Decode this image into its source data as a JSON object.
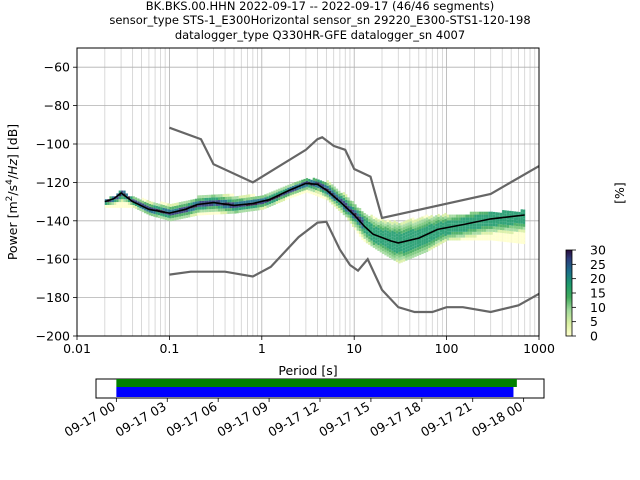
{
  "title_lines": [
    "BK.BKS.00.HHN   2022-09-17 -- 2022-09-17  (46/46 segments)",
    "sensor_type STS-1_E300Horizontal sensor_sn 29220_E300-STS1-120-198",
    "datalogger_type Q330HR-GFE datalogger_sn 4007"
  ],
  "colorbar": {
    "label": "[%]",
    "min": 0,
    "max": 30,
    "ticks": [
      "0",
      "5",
      "10",
      "15",
      "20",
      "25",
      "30"
    ]
  },
  "chart_data": {
    "type": "heatmap",
    "xlabel": "Period [s]",
    "ylabel": "Power [m²/s⁴/Hz] [dB]",
    "x_scale": "log",
    "xlim": [
      0.01,
      1000
    ],
    "ylim": [
      -200,
      -50
    ],
    "x_ticks": [
      {
        "v": 0.01,
        "label": "0.01"
      },
      {
        "v": 0.1,
        "label": "0.1"
      },
      {
        "v": 1,
        "label": "1"
      },
      {
        "v": 10,
        "label": "10"
      },
      {
        "v": 100,
        "label": "100"
      },
      {
        "v": 1000,
        "label": "1000"
      }
    ],
    "y_ticks": [
      -60,
      -80,
      -100,
      -120,
      -140,
      -160,
      -180,
      -200
    ],
    "grid": true,
    "series": [
      {
        "name": "mode",
        "color": "#000000",
        "points": [
          [
            0.02,
            -130
          ],
          [
            0.025,
            -128.5
          ],
          [
            0.03,
            -125.5
          ],
          [
            0.04,
            -130
          ],
          [
            0.06,
            -134
          ],
          [
            0.1,
            -136
          ],
          [
            0.15,
            -134
          ],
          [
            0.2,
            -131.5
          ],
          [
            0.3,
            -130.5
          ],
          [
            0.5,
            -132
          ],
          [
            0.8,
            -131
          ],
          [
            1.2,
            -129
          ],
          [
            2,
            -124
          ],
          [
            3,
            -120.5
          ],
          [
            4,
            -121
          ],
          [
            5,
            -124
          ],
          [
            7,
            -130
          ],
          [
            10,
            -137
          ],
          [
            13,
            -143
          ],
          [
            16,
            -147
          ],
          [
            25,
            -150.5
          ],
          [
            30,
            -151.5
          ],
          [
            50,
            -149
          ],
          [
            80,
            -144.5
          ],
          [
            150,
            -142
          ],
          [
            300,
            -139
          ],
          [
            700,
            -137
          ]
        ]
      },
      {
        "name": "NHNM",
        "color": "#666666",
        "points": [
          [
            0.1,
            -91.5
          ],
          [
            0.22,
            -97.5
          ],
          [
            0.3,
            -110.5
          ],
          [
            0.8,
            -120
          ],
          [
            3,
            -103
          ],
          [
            4,
            -97.5
          ],
          [
            4.5,
            -96.5
          ],
          [
            6,
            -101
          ],
          [
            8,
            -103
          ],
          [
            10,
            -113
          ],
          [
            15,
            -117
          ],
          [
            20,
            -138.5
          ],
          [
            300,
            -126
          ],
          [
            1000,
            -111.5
          ]
        ]
      },
      {
        "name": "NLNM",
        "color": "#666666",
        "points": [
          [
            0.1,
            -168
          ],
          [
            0.17,
            -166.5
          ],
          [
            0.4,
            -166.5
          ],
          [
            0.8,
            -169
          ],
          [
            1.25,
            -164
          ],
          [
            2.5,
            -148.5
          ],
          [
            4,
            -141
          ],
          [
            5,
            -140.5
          ],
          [
            7,
            -155
          ],
          [
            9,
            -163
          ],
          [
            11,
            -166
          ],
          [
            14,
            -160
          ],
          [
            20,
            -176
          ],
          [
            30,
            -185
          ],
          [
            45,
            -187.5
          ],
          [
            70,
            -187.5
          ],
          [
            100,
            -185
          ],
          [
            150,
            -185
          ],
          [
            300,
            -187.5
          ],
          [
            600,
            -184
          ],
          [
            1000,
            -178
          ]
        ]
      },
      {
        "name": "ppsd-band-low",
        "color": "#3dae6a",
        "points": [
          [
            0.02,
            -131
          ],
          [
            0.04,
            -131
          ],
          [
            0.06,
            -135
          ],
          [
            0.1,
            -138
          ],
          [
            0.2,
            -135
          ],
          [
            0.5,
            -134
          ],
          [
            1,
            -132
          ],
          [
            2,
            -126
          ],
          [
            3,
            -123
          ],
          [
            5,
            -127
          ],
          [
            8,
            -136
          ],
          [
            12,
            -148
          ],
          [
            20,
            -155
          ],
          [
            30,
            -160
          ],
          [
            60,
            -154
          ],
          [
            100,
            -148
          ],
          [
            300,
            -148
          ],
          [
            700,
            -150
          ]
        ]
      },
      {
        "name": "ppsd-band-high",
        "color": "#7bc96f",
        "points": [
          [
            0.02,
            -130
          ],
          [
            0.04,
            -129
          ],
          [
            0.06,
            -131
          ],
          [
            0.1,
            -133
          ],
          [
            0.2,
            -129
          ],
          [
            0.4,
            -128
          ],
          [
            1,
            -128
          ],
          [
            2,
            -123
          ],
          [
            3,
            -119
          ],
          [
            5,
            -121
          ],
          [
            8,
            -128
          ],
          [
            12,
            -137
          ],
          [
            20,
            -141
          ],
          [
            30,
            -142
          ],
          [
            60,
            -139
          ],
          [
            100,
            -138
          ],
          [
            300,
            -137
          ],
          [
            700,
            -136
          ]
        ]
      }
    ],
    "data_span": {
      "start": "09-17 00",
      "end": "09-18 00"
    }
  },
  "timeline": {
    "ticks": [
      "09-17 00",
      "09-17 03",
      "09-17 06",
      "09-17 09",
      "09-17 12",
      "09-17 15",
      "09-17 18",
      "09-17 21",
      "09-18 00"
    ],
    "bars": [
      {
        "name": "data-availability",
        "color": "#008000",
        "start_h": 0,
        "end_h": 23.6
      },
      {
        "name": "data-used",
        "color": "#0000ff",
        "start_h": 0,
        "end_h": 23.4
      }
    ],
    "range_h": [
      -1.2,
      25.2
    ]
  }
}
